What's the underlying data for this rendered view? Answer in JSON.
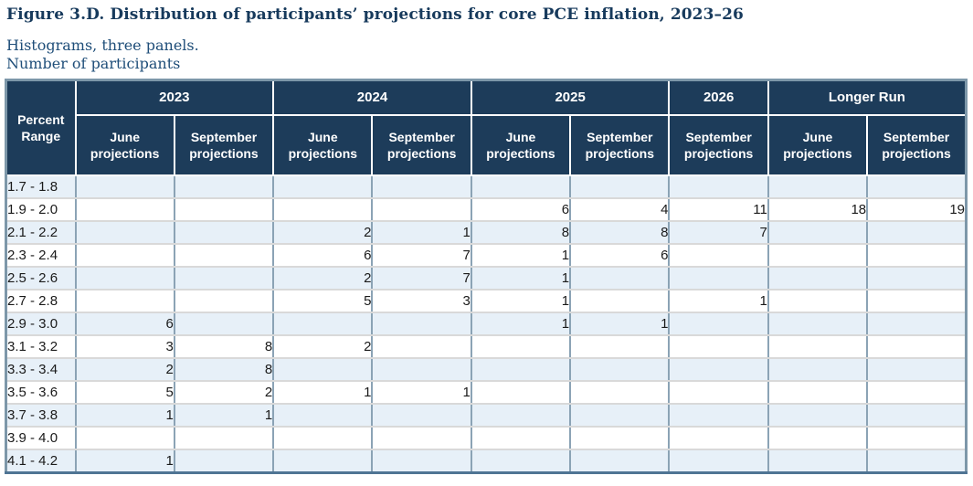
{
  "header": {
    "title": "Figure 3.D. Distribution of participants’ projections for core PCE inflation, 2023–26",
    "subtitle": "Histograms, three panels.",
    "units_label": "Number of participants"
  },
  "colors": {
    "title_text": "#173a5c",
    "subtitle_text": "#1f4e79",
    "header_bg": "#1d3c5a",
    "header_text": "#ffffff",
    "stripe": "#e7f0f8",
    "row_white": "#ffffff",
    "column_border": "#8ba3b5",
    "row_border": "#d9d9d9",
    "outer_border": "#7d97a9",
    "outer_border_dark": "#4f7494",
    "cell_text": "#1a1a1a"
  },
  "table": {
    "corner_header": "Percent Range",
    "year_groups": [
      {
        "label": "2023",
        "span": 2
      },
      {
        "label": "2024",
        "span": 2
      },
      {
        "label": "2025",
        "span": 2
      },
      {
        "label": "2026",
        "span": 1
      },
      {
        "label": "Longer Run",
        "span": 2
      }
    ],
    "column_headers": [
      "June projections",
      "September projections",
      "June projections",
      "September projections",
      "June projections",
      "September projections",
      "September projections",
      "June projections",
      "September projections"
    ],
    "rows": [
      {
        "range": "1.7 - 1.8",
        "values": [
          "",
          "",
          "",
          "",
          "",
          "",
          "",
          "",
          ""
        ]
      },
      {
        "range": "1.9 - 2.0",
        "values": [
          "",
          "",
          "",
          "",
          "6",
          "4",
          "11",
          "18",
          "19"
        ]
      },
      {
        "range": "2.1 - 2.2",
        "values": [
          "",
          "",
          "2",
          "1",
          "8",
          "8",
          "7",
          "",
          ""
        ]
      },
      {
        "range": "2.3 - 2.4",
        "values": [
          "",
          "",
          "6",
          "7",
          "1",
          "6",
          "",
          "",
          ""
        ]
      },
      {
        "range": "2.5 - 2.6",
        "values": [
          "",
          "",
          "2",
          "7",
          "1",
          "",
          "",
          "",
          ""
        ]
      },
      {
        "range": "2.7 - 2.8",
        "values": [
          "",
          "",
          "5",
          "3",
          "1",
          "",
          "1",
          "",
          ""
        ]
      },
      {
        "range": "2.9 - 3.0",
        "values": [
          "6",
          "",
          "",
          "",
          "1",
          "1",
          "",
          "",
          ""
        ]
      },
      {
        "range": "3.1 - 3.2",
        "values": [
          "3",
          "8",
          "2",
          "",
          "",
          "",
          "",
          "",
          ""
        ]
      },
      {
        "range": "3.3 - 3.4",
        "values": [
          "2",
          "8",
          "",
          "",
          "",
          "",
          "",
          "",
          ""
        ]
      },
      {
        "range": "3.5 - 3.6",
        "values": [
          "5",
          "2",
          "1",
          "1",
          "",
          "",
          "",
          "",
          ""
        ]
      },
      {
        "range": "3.7 - 3.8",
        "values": [
          "1",
          "1",
          "",
          "",
          "",
          "",
          "",
          "",
          ""
        ]
      },
      {
        "range": "3.9 - 4.0",
        "values": [
          "",
          "",
          "",
          "",
          "",
          "",
          "",
          "",
          ""
        ]
      },
      {
        "range": "4.1 - 4.2",
        "values": [
          "1",
          "",
          "",
          "",
          "",
          "",
          "",
          "",
          ""
        ]
      }
    ]
  }
}
